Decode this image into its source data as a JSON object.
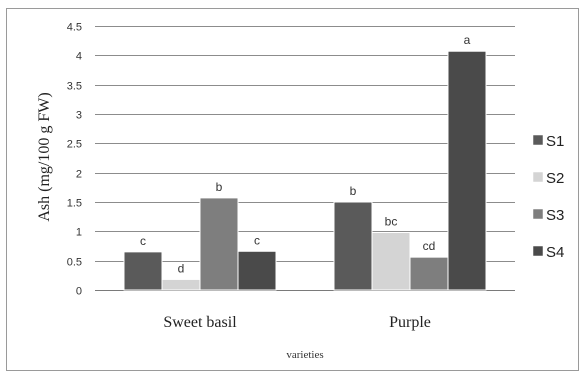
{
  "chart_data": {
    "type": "bar",
    "categories": [
      "Sweet basil",
      "Purple"
    ],
    "series": [
      {
        "name": "S1",
        "values": [
          0.65,
          1.5
        ],
        "labels": [
          "c",
          "b"
        ],
        "color": "#5a5a5a"
      },
      {
        "name": "S2",
        "values": [
          0.18,
          0.98
        ],
        "labels": [
          "d",
          "bc"
        ],
        "color": "#d4d4d4"
      },
      {
        "name": "S3",
        "values": [
          1.57,
          0.56
        ],
        "labels": [
          "b",
          "cd"
        ],
        "color": "#7e7e7e"
      },
      {
        "name": "S4",
        "values": [
          0.66,
          4.07
        ],
        "labels": [
          "c",
          "a"
        ],
        "color": "#4a4a4a"
      }
    ],
    "ylabel": "Ash (mg/100 g FW)",
    "xlabel": "varieties",
    "ylim": [
      0,
      4.5
    ],
    "yticks": [
      "0",
      "0.5",
      "1",
      "1.5",
      "2",
      "2.5",
      "3",
      "3.5",
      "4",
      "4.5"
    ],
    "grid": true,
    "legend_position": "right"
  }
}
